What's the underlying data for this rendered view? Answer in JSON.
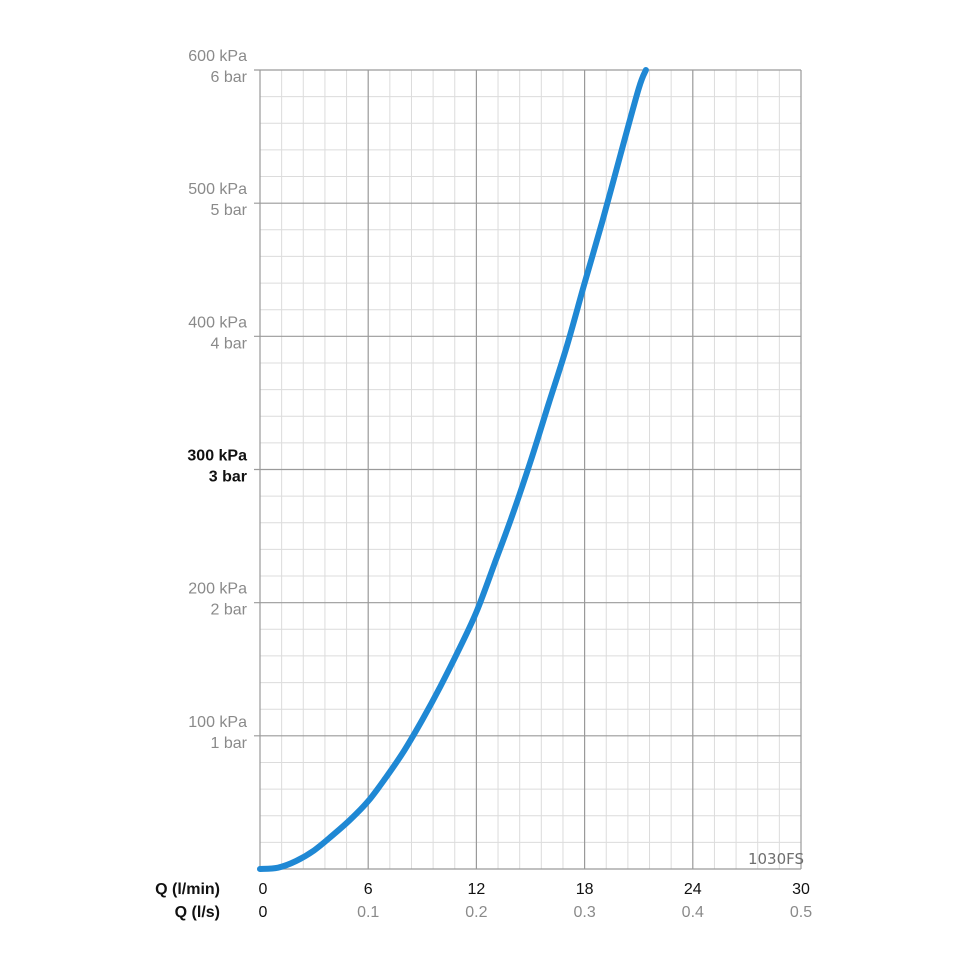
{
  "chart_data": {
    "type": "line",
    "model_label": "1030FS",
    "colors": {
      "curve": "#1f88d4",
      "major_grid": "#9a9a9a",
      "minor_grid": "#dcdcdc"
    },
    "grid": true,
    "x_axis_primary": {
      "label": "Q (l/min)",
      "ticks": [
        "0",
        "6",
        "12",
        "18",
        "24",
        "30"
      ],
      "range": [
        0,
        30
      ]
    },
    "x_axis_secondary": {
      "label": "Q (l/s)",
      "ticks": [
        "0",
        "0.1",
        "0.2",
        "0.3",
        "0.4",
        "0.5"
      ],
      "range": [
        0,
        0.5
      ]
    },
    "y_axis": {
      "range": [
        0,
        600
      ],
      "ticks": [
        {
          "value": 100,
          "kpa": "100 kPa",
          "bar": "1 bar",
          "bold": false
        },
        {
          "value": 200,
          "kpa": "200 kPa",
          "bar": "2 bar",
          "bold": false
        },
        {
          "value": 300,
          "kpa": "300 kPa",
          "bar": "3 bar",
          "bold": true
        },
        {
          "value": 400,
          "kpa": "400 kPa",
          "bar": "4 bar",
          "bold": false
        },
        {
          "value": 500,
          "kpa": "500 kPa",
          "bar": "5 bar",
          "bold": false
        },
        {
          "value": 600,
          "kpa": "600 kPa",
          "bar": "6 bar",
          "bold": false
        }
      ]
    },
    "series": [
      {
        "x": [
          0,
          1,
          2,
          3,
          4,
          5,
          6,
          7,
          8,
          9,
          10,
          11,
          12,
          13,
          14,
          15,
          16,
          17,
          18,
          19,
          20,
          21,
          21.4
        ],
        "y": [
          0,
          1,
          6,
          14,
          25,
          37,
          51,
          69,
          89,
          112,
          137,
          164,
          193,
          229,
          266,
          306,
          349,
          392,
          440,
          487,
          537,
          586,
          600
        ]
      }
    ]
  }
}
